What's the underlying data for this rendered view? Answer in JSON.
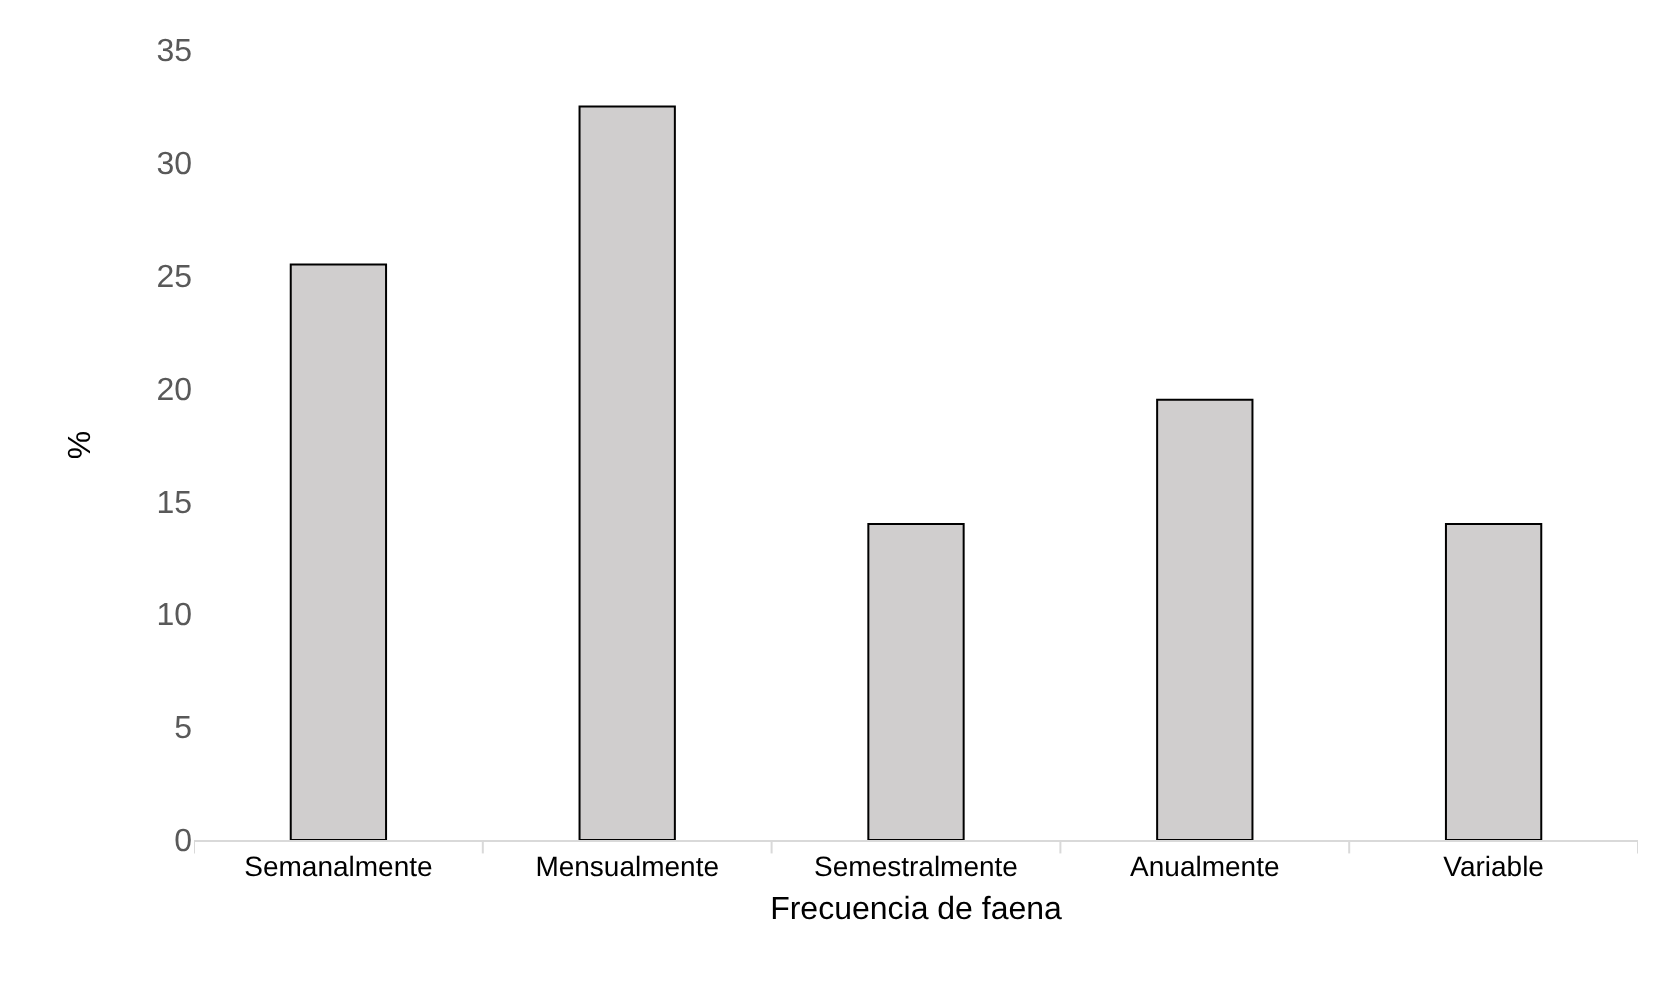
{
  "chart_data": {
    "type": "bar",
    "xlabel": "Frecuencia de faena",
    "ylabel": "%",
    "categories": [
      "Semanalmente",
      "Mensualmente",
      "Semestralmente",
      "Anualmente",
      "Variable"
    ],
    "values": [
      25.5,
      32.5,
      14,
      19.5,
      14
    ],
    "color": "#d0cece",
    "ylim": [
      0,
      35
    ],
    "yticks": [
      0,
      5,
      10,
      15,
      20,
      25,
      30,
      35
    ],
    "grid": false
  }
}
